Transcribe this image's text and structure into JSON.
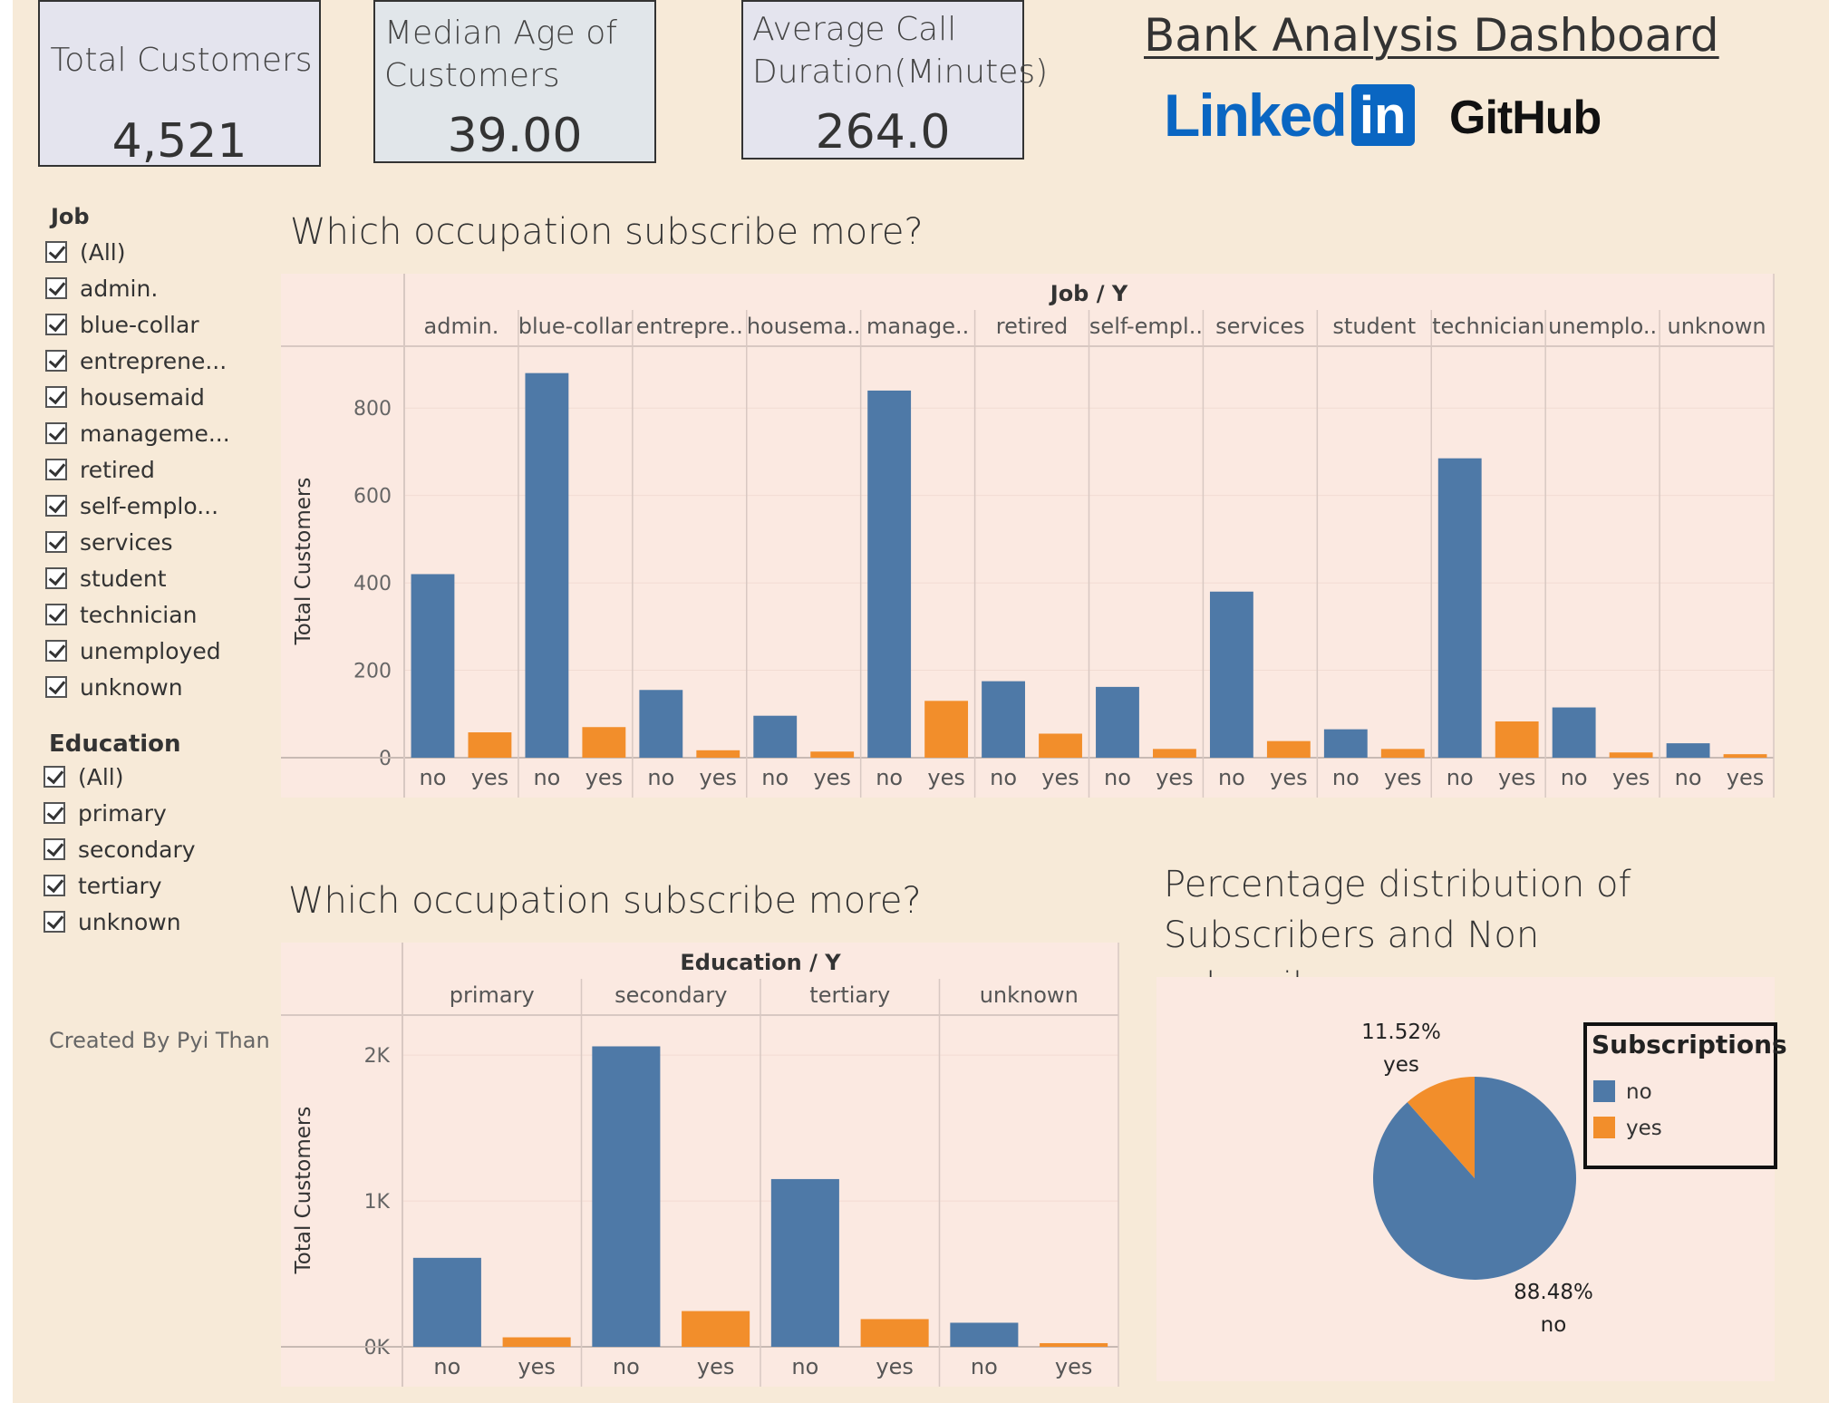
{
  "header": {
    "title": "Bank Analysis Dashboard",
    "linkedin_word": "Linked",
    "linkedin_box": "in",
    "github": "GitHub"
  },
  "kpis": [
    {
      "label": "Total Customers",
      "value": "4,521"
    },
    {
      "label": "Median Age of Customers",
      "value": "39.00"
    },
    {
      "label": "Average Call Duration(Minutes)",
      "value": "264.0"
    }
  ],
  "filters": {
    "job": {
      "title": "Job",
      "items": [
        "(All)",
        "admin.",
        "blue-collar",
        "entreprene...",
        "housemaid",
        "manageme...",
        "retired",
        "self-emplo...",
        "services",
        "student",
        "technician",
        "unemployed",
        "unknown"
      ]
    },
    "education": {
      "title": "Education",
      "items": [
        "(All)",
        "primary",
        "secondary",
        "tertiary",
        "unknown"
      ]
    }
  },
  "credit": "Created By Pyi Than",
  "colors": {
    "no": "#4e79a7",
    "yes": "#f28e2b",
    "panel": "#fbe9e1",
    "background": "#f7ead8"
  },
  "chart_data": [
    {
      "type": "bar",
      "title": "Which occupation subscribe more?",
      "column_header": "Job / Y",
      "ylabel": "Total Customers",
      "ylim": [
        0,
        900
      ],
      "yticks": [
        0,
        200,
        400,
        600,
        800
      ],
      "ytick_labels": [
        "0",
        "200",
        "400",
        "600",
        "800"
      ],
      "sub_categories": [
        "no",
        "yes"
      ],
      "categories": [
        "admin.",
        "blue-collar",
        "entrepre..",
        "housema..",
        "manage..",
        "retired",
        "self-empl..",
        "services",
        "student",
        "technician",
        "unemplo..",
        "unknown"
      ],
      "series": [
        {
          "name": "no",
          "values": [
            420,
            880,
            155,
            96,
            840,
            175,
            162,
            380,
            65,
            685,
            115,
            33
          ]
        },
        {
          "name": "yes",
          "values": [
            58,
            70,
            17,
            14,
            130,
            55,
            20,
            38,
            20,
            83,
            12,
            8
          ]
        }
      ]
    },
    {
      "type": "bar",
      "title": "Which occupation subscribe more?",
      "column_header": "Education / Y",
      "ylabel": "Total Customers",
      "ylim": [
        0,
        2150
      ],
      "yticks": [
        0,
        1000,
        2000
      ],
      "ytick_labels": [
        "0K",
        "1K",
        "2K"
      ],
      "sub_categories": [
        "no",
        "yes"
      ],
      "categories": [
        "primary",
        "secondary",
        "tertiary",
        "unknown"
      ],
      "series": [
        {
          "name": "no",
          "values": [
            610,
            2060,
            1150,
            165
          ]
        },
        {
          "name": "yes",
          "values": [
            65,
            245,
            190,
            25
          ]
        }
      ]
    },
    {
      "type": "pie",
      "title": "Percentage distribution of Subscribers and Non subscribers",
      "legend_title": "Subscriptions",
      "legend_position": "right",
      "slices": [
        {
          "name": "no",
          "value": 88.48,
          "label": "88.48%"
        },
        {
          "name": "yes",
          "value": 11.52,
          "label": "11.52%"
        }
      ]
    }
  ]
}
